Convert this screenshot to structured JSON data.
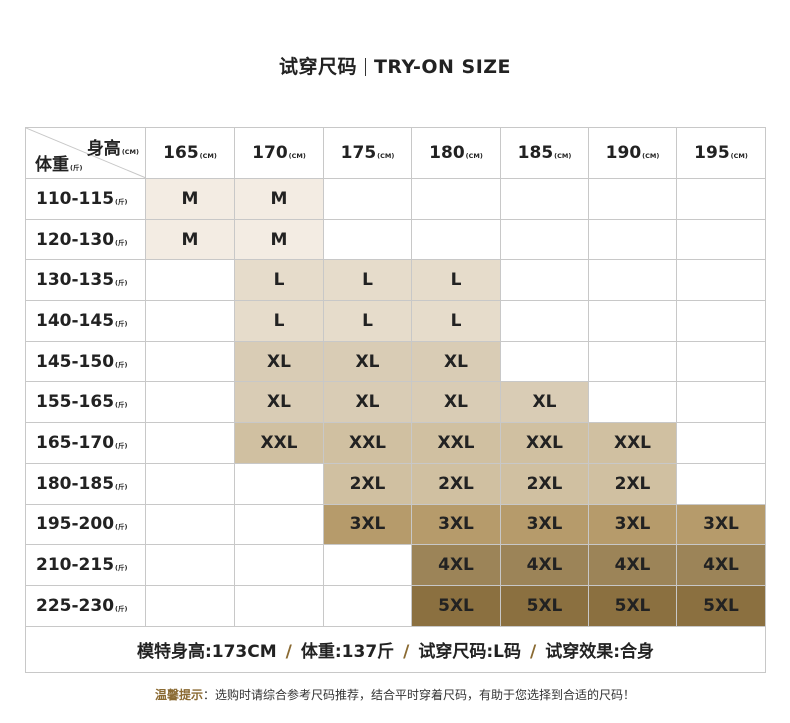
{
  "title": {
    "zh": "试穿尺码",
    "en": "TRY-ON SIZE"
  },
  "table": {
    "corner": {
      "height_label": "身高",
      "height_unit": "(CM)",
      "weight_label": "体重",
      "weight_unit": "(斤)"
    },
    "height_unit": "(CM)",
    "weight_unit": "(斤)",
    "heights": [
      "165",
      "170",
      "175",
      "180",
      "185",
      "190",
      "195"
    ],
    "rows": [
      {
        "weight": "110-115",
        "cells": [
          "M",
          "M",
          "",
          "",
          "",
          "",
          ""
        ]
      },
      {
        "weight": "120-130",
        "cells": [
          "M",
          "M",
          "",
          "",
          "",
          "",
          ""
        ]
      },
      {
        "weight": "130-135",
        "cells": [
          "",
          "L",
          "L",
          "L",
          "",
          "",
          ""
        ]
      },
      {
        "weight": "140-145",
        "cells": [
          "",
          "L",
          "L",
          "L",
          "",
          "",
          ""
        ]
      },
      {
        "weight": "145-150",
        "cells": [
          "",
          "XL",
          "XL",
          "XL",
          "",
          "",
          ""
        ]
      },
      {
        "weight": "155-165",
        "cells": [
          "",
          "XL",
          "XL",
          "XL",
          "XL",
          "",
          ""
        ]
      },
      {
        "weight": "165-170",
        "cells": [
          "",
          "XXL",
          "XXL",
          "XXL",
          "XXL",
          "XXL",
          ""
        ]
      },
      {
        "weight": "180-185",
        "cells": [
          "",
          "",
          "2XL",
          "2XL",
          "2XL",
          "2XL",
          ""
        ]
      },
      {
        "weight": "195-200",
        "cells": [
          "",
          "",
          "3XL",
          "3XL",
          "3XL",
          "3XL",
          "3XL"
        ]
      },
      {
        "weight": "210-215",
        "cells": [
          "",
          "",
          "",
          "4XL",
          "4XL",
          "4XL",
          "4XL"
        ]
      },
      {
        "weight": "225-230",
        "cells": [
          "",
          "",
          "",
          "5XL",
          "5XL",
          "5XL",
          "5XL"
        ]
      }
    ],
    "size_colors": {
      "M": "#f3ece3",
      "L": "#e6dccb",
      "XL": "#d9ccb5",
      "XXL": "#d0c0a1",
      "2XL": "#d0c0a1",
      "3XL": "#b69b6b",
      "4XL": "#9c8458",
      "5XL": "#8b7040"
    },
    "model_info": {
      "height": "模特身高:173CM",
      "weight": "体重:137斤",
      "size": "试穿尺码:L码",
      "effect": "试穿效果:合身",
      "divider": "/"
    }
  },
  "tip": {
    "label": "温馨提示",
    "text": "：选购时请综合参考尺码推荐，结合平时穿着尺码，有助于您选择到合适的尺码！"
  },
  "accent_color": "#8a6a32"
}
